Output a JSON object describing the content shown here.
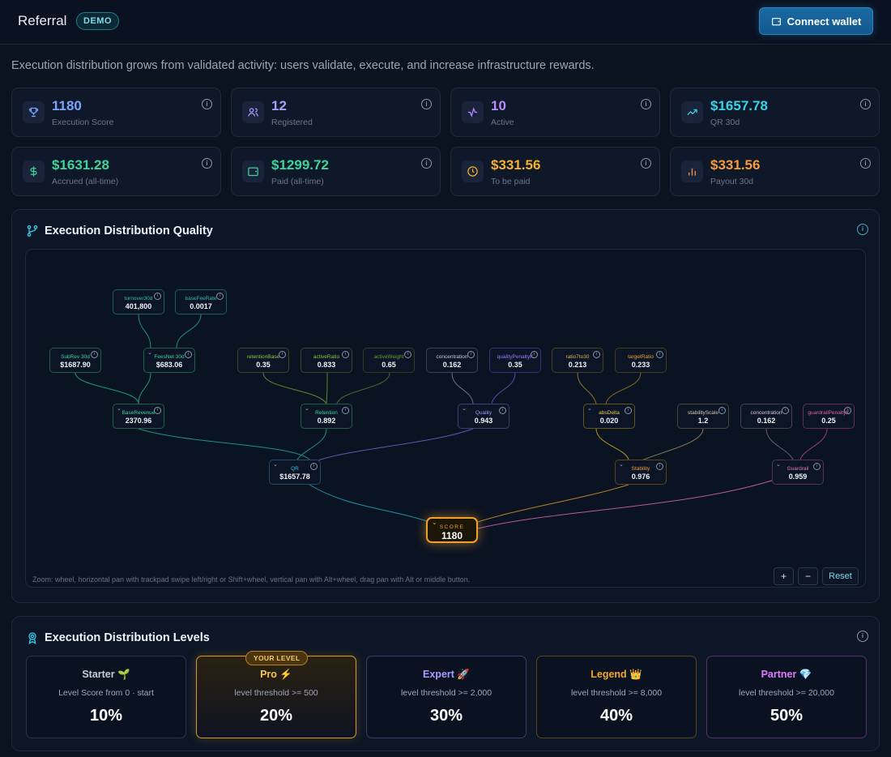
{
  "header": {
    "title": "Referral",
    "badge": "DEMO",
    "connect_label": "Connect wallet"
  },
  "intro": "Execution distribution grows from validated activity: users validate, execute, and increase infrastructure rewards.",
  "stats": [
    {
      "value": "1180",
      "label": "Execution Score",
      "color": "#7aa5ff",
      "icon": "trophy-icon"
    },
    {
      "value": "12",
      "label": "Registered",
      "color": "#a99cff",
      "icon": "users-icon"
    },
    {
      "value": "10",
      "label": "Active",
      "color": "#b98cff",
      "icon": "activity-icon"
    },
    {
      "value": "$1657.78",
      "label": "QR 30d",
      "color": "#38d2e8",
      "icon": "trending-up-icon"
    },
    {
      "value": "$1631.28",
      "label": "Accrued (all-time)",
      "color": "#3fd39a",
      "icon": "dollar-icon"
    },
    {
      "value": "$1299.72",
      "label": "Paid (all-time)",
      "color": "#3fd39a",
      "icon": "wallet-icon"
    },
    {
      "value": "$331.56",
      "label": "To be paid",
      "color": "#f5b12e",
      "icon": "clock-icon"
    },
    {
      "value": "$331.56",
      "label": "Payout 30d",
      "color": "#f59a3e",
      "icon": "bar-chart-icon"
    }
  ],
  "quality": {
    "title": "Execution Distribution Quality",
    "hint": "Zoom: wheel, horizontal pan with trackpad swipe left/right or Shift+wheel, vertical pan with Alt+wheel, drag pan with Alt or middle button.",
    "zoom_in": "+",
    "zoom_out": "−",
    "reset": "Reset",
    "score_label": "SCORE",
    "score_value": "1180",
    "nodes": [
      {
        "label": "turnover30d",
        "value": "401,800",
        "color": "#2fbfa6"
      },
      {
        "label": "baseFeeRate",
        "value": "0.0017",
        "color": "#2fbfa6"
      },
      {
        "label": "SubRev 30d",
        "value": "$1687.90",
        "color": "#3fd39a"
      },
      {
        "label": "FeesNet 30d",
        "value": "$683.06",
        "color": "#3fd39a"
      },
      {
        "label": "retentionBase",
        "value": "0.35",
        "color": "#8fc93a"
      },
      {
        "label": "activeRatio",
        "value": "0.833",
        "color": "#8fc93a"
      },
      {
        "label": "activeWeight",
        "value": "0.65",
        "color": "#6f9a2e"
      },
      {
        "label": "concentration",
        "value": "0.162",
        "color": "#c8cfdc"
      },
      {
        "label": "qualityPenaltyK",
        "value": "0.35",
        "color": "#9a7cff"
      },
      {
        "label": "ratio7to30",
        "value": "0.213",
        "color": "#e6b450"
      },
      {
        "label": "targetRatio",
        "value": "0.233",
        "color": "#f0a030"
      },
      {
        "label": "BaseRevenue",
        "value": "2370.96",
        "color": "#3fd39a"
      },
      {
        "label": "Retention",
        "value": "0.892",
        "color": "#3fd39a"
      },
      {
        "label": "Quality",
        "value": "0.943",
        "color": "#9a9cff"
      },
      {
        "label": "absDelta",
        "value": "0.020",
        "color": "#f5c84a"
      },
      {
        "label": "stabilityScale",
        "value": "1.2",
        "color": "#d8c8a8"
      },
      {
        "label": "concentration",
        "value": "0.162",
        "color": "#d8c8d8"
      },
      {
        "label": "guardrailPenaltyK",
        "value": "0.25",
        "color": "#e060a8"
      },
      {
        "label": "QR",
        "value": "$1657.78",
        "color": "#38c8e8"
      },
      {
        "label": "Stability",
        "value": "0.976",
        "color": "#f0a030"
      },
      {
        "label": "Guardrail",
        "value": "0.959",
        "color": "#e07ab8"
      }
    ]
  },
  "levels": {
    "title": "Execution Distribution Levels",
    "your_level": "YOUR LEVEL",
    "items": [
      {
        "name": "Starter 🌱",
        "desc": "Level Score from 0 · start",
        "pct": "10%",
        "color": "#c6ccd6",
        "border": "#2b3550"
      },
      {
        "name": "Pro ⚡",
        "desc": "level threshold >= 500",
        "pct": "20%",
        "color": "#f5c84a",
        "border": "#d69a24"
      },
      {
        "name": "Expert 🚀",
        "desc": "level threshold >= 2,000",
        "pct": "30%",
        "color": "#a99cff",
        "border": "#3a3c6a"
      },
      {
        "name": "Legend 👑",
        "desc": "level threshold >= 8,000",
        "pct": "40%",
        "color": "#f5a623",
        "border": "#5a4418"
      },
      {
        "name": "Partner 💎",
        "desc": "level threshold >= 20,000",
        "pct": "50%",
        "color": "#e07aff",
        "border": "#5a2f6a"
      }
    ]
  }
}
